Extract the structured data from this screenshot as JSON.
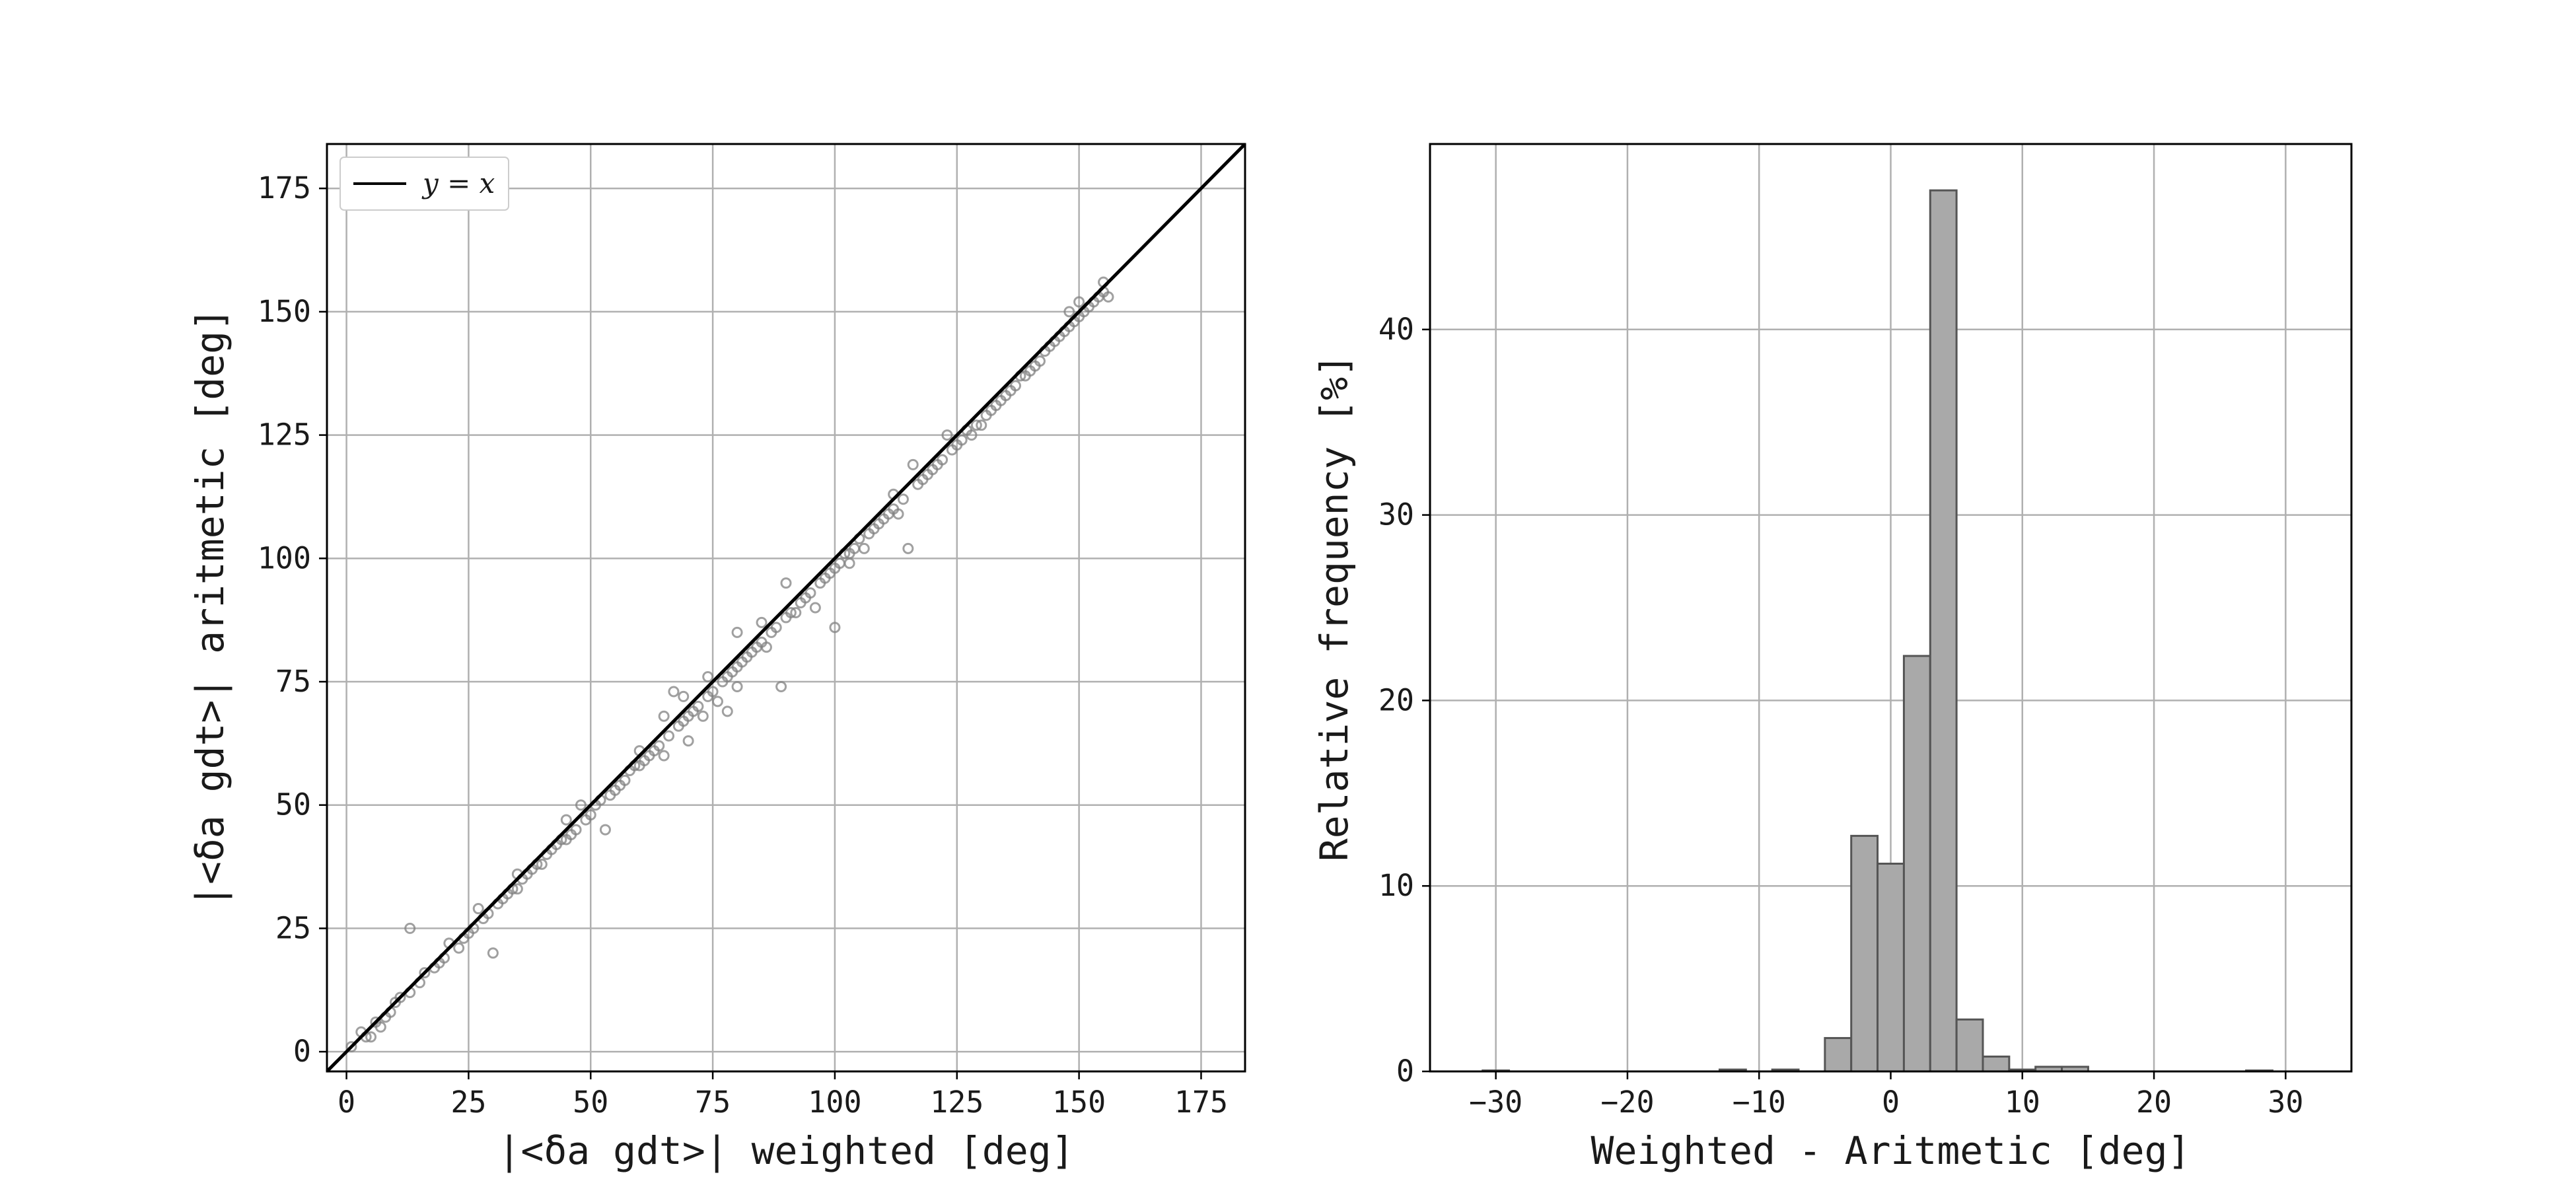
{
  "chart_data": [
    {
      "type": "scatter",
      "xlabel": "|<δa gdt>| weighted [deg]",
      "ylabel": "|<δa gdt>| aritmetic [deg]",
      "xlim": [
        -4,
        184
      ],
      "ylim": [
        -4,
        184
      ],
      "xticks": [
        0,
        25,
        50,
        75,
        100,
        125,
        150,
        175
      ],
      "yticks": [
        0,
        25,
        50,
        75,
        100,
        125,
        150,
        175
      ],
      "grid": true,
      "legend": {
        "placement": "top-left",
        "entries": [
          "y = x"
        ]
      },
      "reference_line": {
        "name": "y = x",
        "slope": 1,
        "intercept": 0,
        "color": "#000000"
      },
      "marker_color": "#808080",
      "points": [
        [
          1,
          1
        ],
        [
          3,
          4
        ],
        [
          5,
          3
        ],
        [
          8,
          7
        ],
        [
          10,
          10
        ],
        [
          13,
          12
        ],
        [
          15,
          14
        ],
        [
          13,
          25
        ],
        [
          18,
          17
        ],
        [
          20,
          19
        ],
        [
          23,
          21
        ],
        [
          25,
          24
        ],
        [
          28,
          27
        ],
        [
          30,
          20
        ],
        [
          32,
          31
        ],
        [
          35,
          33
        ],
        [
          37,
          36
        ],
        [
          40,
          38
        ],
        [
          42,
          41
        ],
        [
          45,
          43
        ],
        [
          47,
          45
        ],
        [
          48,
          50
        ],
        [
          50,
          48
        ],
        [
          52,
          51
        ],
        [
          53,
          45
        ],
        [
          55,
          53
        ],
        [
          57,
          55
        ],
        [
          58,
          57
        ],
        [
          60,
          58
        ],
        [
          62,
          60
        ],
        [
          64,
          62
        ],
        [
          65,
          60
        ],
        [
          66,
          64
        ],
        [
          67,
          73
        ],
        [
          68,
          66
        ],
        [
          70,
          68
        ],
        [
          70,
          63
        ],
        [
          72,
          70
        ],
        [
          73,
          68
        ],
        [
          75,
          73
        ],
        [
          76,
          71
        ],
        [
          77,
          75
        ],
        [
          78,
          76
        ],
        [
          80,
          78
        ],
        [
          80,
          85
        ],
        [
          82,
          80
        ],
        [
          83,
          81
        ],
        [
          85,
          83
        ],
        [
          86,
          82
        ],
        [
          88,
          86
        ],
        [
          89,
          74
        ],
        [
          90,
          88
        ],
        [
          92,
          89
        ],
        [
          93,
          91
        ],
        [
          95,
          93
        ],
        [
          96,
          90
        ],
        [
          97,
          95
        ],
        [
          98,
          96
        ],
        [
          100,
          98
        ],
        [
          100,
          86
        ],
        [
          102,
          101
        ],
        [
          103,
          99
        ],
        [
          104,
          102
        ],
        [
          105,
          104
        ],
        [
          106,
          102
        ],
        [
          108,
          106
        ],
        [
          109,
          107
        ],
        [
          110,
          108
        ],
        [
          112,
          110
        ],
        [
          113,
          109
        ],
        [
          114,
          112
        ],
        [
          115,
          102
        ],
        [
          116,
          119
        ],
        [
          117,
          115
        ],
        [
          118,
          116
        ],
        [
          120,
          118
        ],
        [
          121,
          119
        ],
        [
          122,
          120
        ],
        [
          123,
          125
        ],
        [
          124,
          122
        ],
        [
          125,
          123
        ],
        [
          126,
          124
        ],
        [
          127,
          126
        ],
        [
          128,
          125
        ],
        [
          130,
          127
        ],
        [
          131,
          129
        ],
        [
          132,
          130
        ],
        [
          133,
          131
        ],
        [
          135,
          133
        ],
        [
          136,
          134
        ],
        [
          137,
          135
        ],
        [
          138,
          137
        ],
        [
          140,
          138
        ],
        [
          141,
          139
        ],
        [
          142,
          140
        ],
        [
          143,
          142
        ],
        [
          144,
          143
        ],
        [
          145,
          144
        ],
        [
          146,
          145
        ],
        [
          147,
          146
        ],
        [
          148,
          147
        ],
        [
          149,
          148
        ],
        [
          150,
          149
        ],
        [
          151,
          150
        ],
        [
          152,
          151
        ],
        [
          153,
          152
        ],
        [
          154,
          153
        ],
        [
          155,
          154
        ],
        [
          156,
          153
        ],
        [
          155,
          156
        ],
        [
          4,
          3
        ],
        [
          6,
          6
        ],
        [
          7,
          5
        ],
        [
          9,
          8
        ],
        [
          11,
          11
        ],
        [
          16,
          16
        ],
        [
          19,
          18
        ],
        [
          21,
          22
        ],
        [
          24,
          23
        ],
        [
          26,
          25
        ],
        [
          27,
          29
        ],
        [
          29,
          28
        ],
        [
          31,
          30
        ],
        [
          33,
          32
        ],
        [
          34,
          33
        ],
        [
          36,
          35
        ],
        [
          38,
          37
        ],
        [
          39,
          38
        ],
        [
          41,
          40
        ],
        [
          43,
          42
        ],
        [
          44,
          43
        ],
        [
          46,
          44
        ],
        [
          49,
          47
        ],
        [
          51,
          50
        ],
        [
          54,
          52
        ],
        [
          56,
          54
        ],
        [
          59,
          58
        ],
        [
          61,
          59
        ],
        [
          63,
          61
        ],
        [
          69,
          67
        ],
        [
          71,
          69
        ],
        [
          74,
          72
        ],
        [
          79,
          77
        ],
        [
          81,
          79
        ],
        [
          84,
          82
        ],
        [
          87,
          85
        ],
        [
          91,
          89
        ],
        [
          94,
          92
        ],
        [
          99,
          97
        ],
        [
          101,
          99
        ],
        [
          107,
          105
        ],
        [
          111,
          109
        ],
        [
          119,
          117
        ],
        [
          129,
          127
        ],
        [
          134,
          132
        ],
        [
          139,
          137
        ],
        [
          69,
          72
        ],
        [
          74,
          76
        ],
        [
          78,
          69
        ],
        [
          90,
          95
        ],
        [
          85,
          87
        ],
        [
          60,
          61
        ],
        [
          45,
          47
        ],
        [
          35,
          36
        ],
        [
          150,
          152
        ],
        [
          148,
          150
        ],
        [
          103,
          101
        ],
        [
          112,
          113
        ],
        [
          80,
          74
        ],
        [
          65,
          68
        ]
      ]
    },
    {
      "type": "bar",
      "xlabel": "Weighted - Aritmetic [deg]",
      "ylabel": "Relative frequency [%]",
      "xlim": [
        -35,
        35
      ],
      "ylim": [
        0,
        50
      ],
      "xticks": [
        -30,
        -20,
        -10,
        0,
        10,
        20,
        30
      ],
      "yticks": [
        0,
        10,
        20,
        30,
        40
      ],
      "grid": true,
      "bar_color": "#a9a9a9",
      "edge_color": "#555555",
      "bin_width": 2,
      "bins": [
        {
          "x0": -31,
          "x1": -29,
          "value": 0.05
        },
        {
          "x0": -13,
          "x1": -11,
          "value": 0.1
        },
        {
          "x0": -9,
          "x1": -7,
          "value": 0.1
        },
        {
          "x0": -5,
          "x1": -3,
          "value": 1.8
        },
        {
          "x0": -3,
          "x1": -1,
          "value": 12.7
        },
        {
          "x0": -1,
          "x1": 1,
          "value": 11.2
        },
        {
          "x0": 1,
          "x1": 3,
          "value": 22.4
        },
        {
          "x0": 3,
          "x1": 5,
          "value": 47.5
        },
        {
          "x0": 5,
          "x1": 7,
          "value": 2.8
        },
        {
          "x0": 7,
          "x1": 9,
          "value": 0.8
        },
        {
          "x0": 9,
          "x1": 11,
          "value": 0.1
        },
        {
          "x0": 11,
          "x1": 13,
          "value": 0.25
        },
        {
          "x0": 13,
          "x1": 15,
          "value": 0.25
        },
        {
          "x0": 27,
          "x1": 29,
          "value": 0.05
        }
      ]
    }
  ]
}
